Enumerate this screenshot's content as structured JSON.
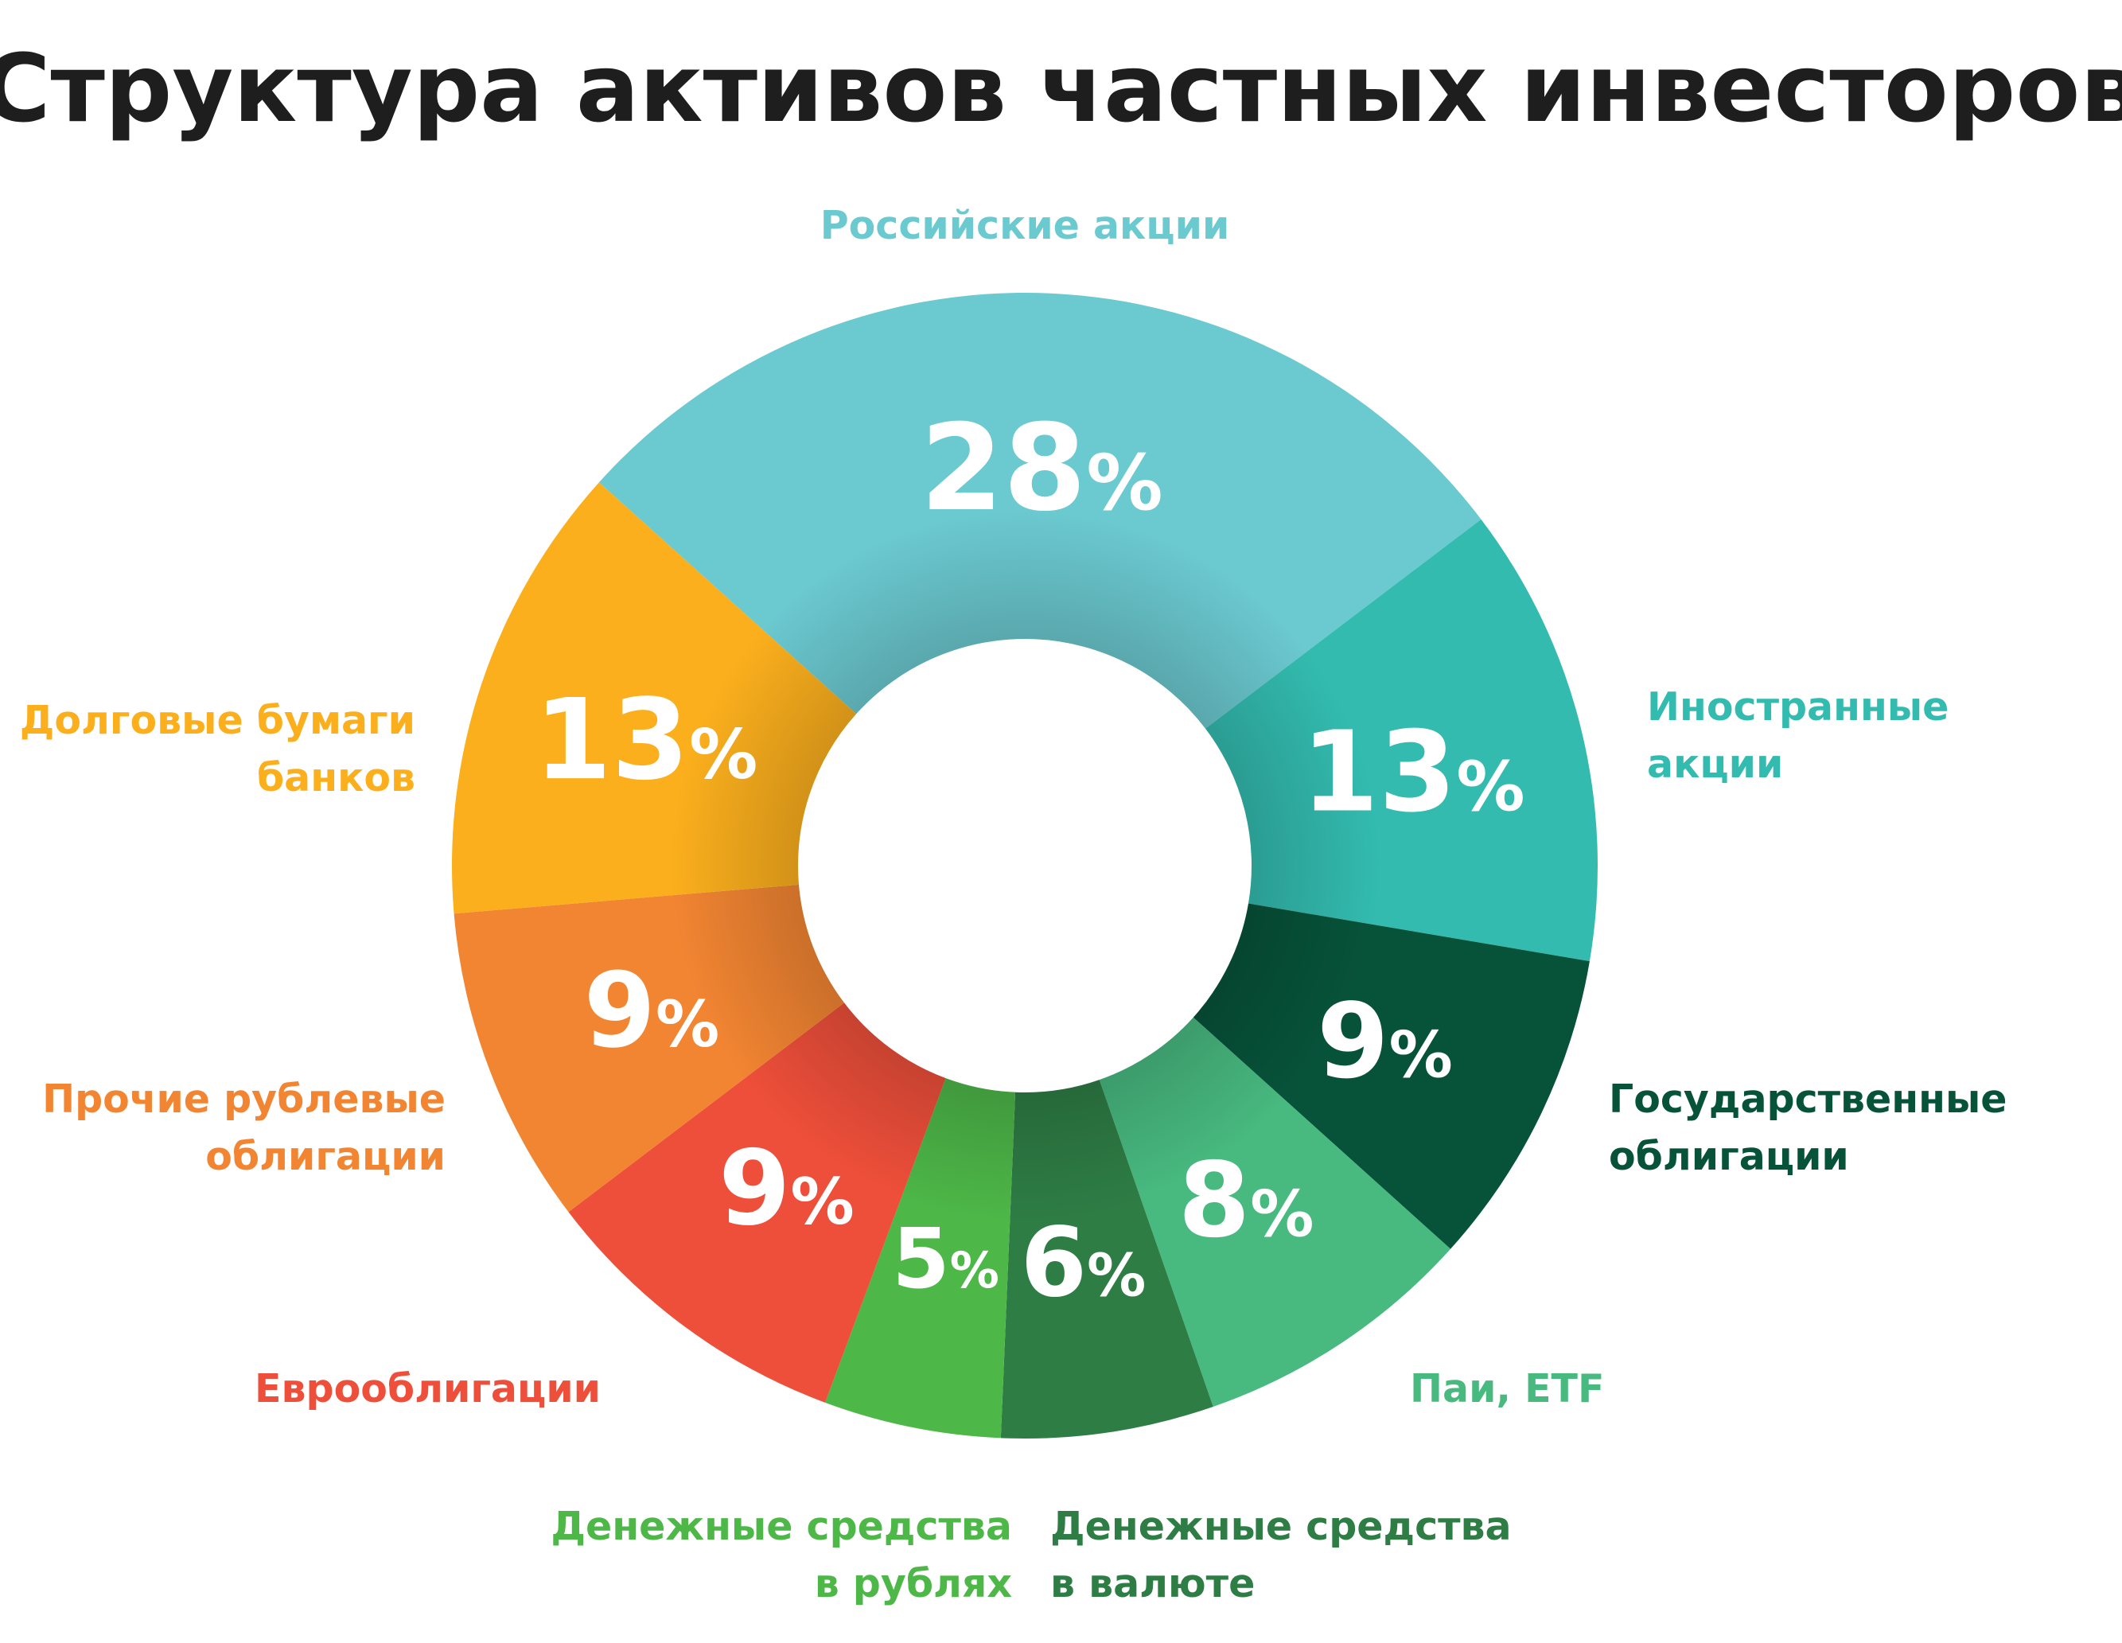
{
  "chart_data": {
    "type": "pie",
    "title": "Структура активов частных инвесторов",
    "donut": true,
    "unit": "%",
    "categories": [
      "Российские акции",
      "Иностранные акции",
      "Государственные облигации",
      "Паи, ETF",
      "Денежные средства в валюте",
      "Денежные средства в рублях",
      "Еврооблигации",
      "Прочие рублевые облигации",
      "Долговые бумаги банков"
    ],
    "values": [
      28,
      13,
      9,
      8,
      6,
      5,
      9,
      9,
      13
    ],
    "value_labels": [
      "28",
      "13",
      "9",
      "8",
      "6",
      "5",
      "9",
      "9",
      "13"
    ],
    "label_lines": [
      [
        "Российские акции"
      ],
      [
        "Иностранные",
        "акции"
      ],
      [
        "Государственные",
        "облигации"
      ],
      [
        "Паи, ETF"
      ],
      [
        "Денежные средства",
        "в валюте"
      ],
      [
        "Денежные средства",
        "в рублях"
      ],
      [
        "Еврооблигации"
      ],
      [
        "Прочие рублевые",
        "облигации"
      ],
      [
        "Долговые бумаги",
        "банков"
      ]
    ],
    "colors": [
      "#6BC9D0",
      "#33BBAF",
      "#07533A",
      "#48BA80",
      "#2E7D45",
      "#4DB748",
      "#EE4F3A",
      "#F28532",
      "#FBAF1D"
    ],
    "label_colors": [
      "#6BC9D0",
      "#33BBAF",
      "#07533A",
      "#48BA80",
      "#2E7D45",
      "#4DB748",
      "#EE4F3A",
      "#F28532",
      "#FBAF1D"
    ],
    "legend": "none",
    "grid": false
  }
}
